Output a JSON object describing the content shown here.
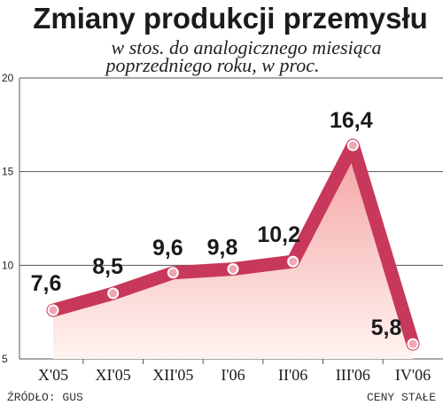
{
  "colors": {
    "line": "#c8385a",
    "area_top": "#f4a3a3",
    "area_bottom": "#fff3ef",
    "grid": "#555555",
    "marker_fill": "#f1a6b4",
    "marker_stroke": "#ffffff"
  },
  "footer": {
    "source": "ŹRÓDŁO: GUS",
    "note": "CENY STAŁE"
  },
  "chart_data": {
    "type": "area",
    "title": "Zmiany produkcji przemysłu",
    "subtitle_line1": "w stos. do analogicznego miesiąca",
    "subtitle_line2": "poprzedniego roku, w proc.",
    "xlabel": "",
    "ylabel": "",
    "categories": [
      "X'05",
      "XI'05",
      "XII'05",
      "I'06",
      "II'06",
      "III'06",
      "IV'06"
    ],
    "series": [
      {
        "values": [
          7.6,
          8.5,
          9.6,
          9.8,
          10.2,
          16.4,
          5.8
        ],
        "labels": [
          "7,6",
          "8,5",
          "9,6",
          "9,8",
          "10,2",
          "16,4",
          "5,8"
        ]
      }
    ],
    "yticks": [
      5,
      10,
      15,
      20
    ],
    "ytick_labels": [
      "5",
      "10",
      "15",
      "20"
    ],
    "ylim": [
      5,
      20
    ],
    "grid": true
  }
}
